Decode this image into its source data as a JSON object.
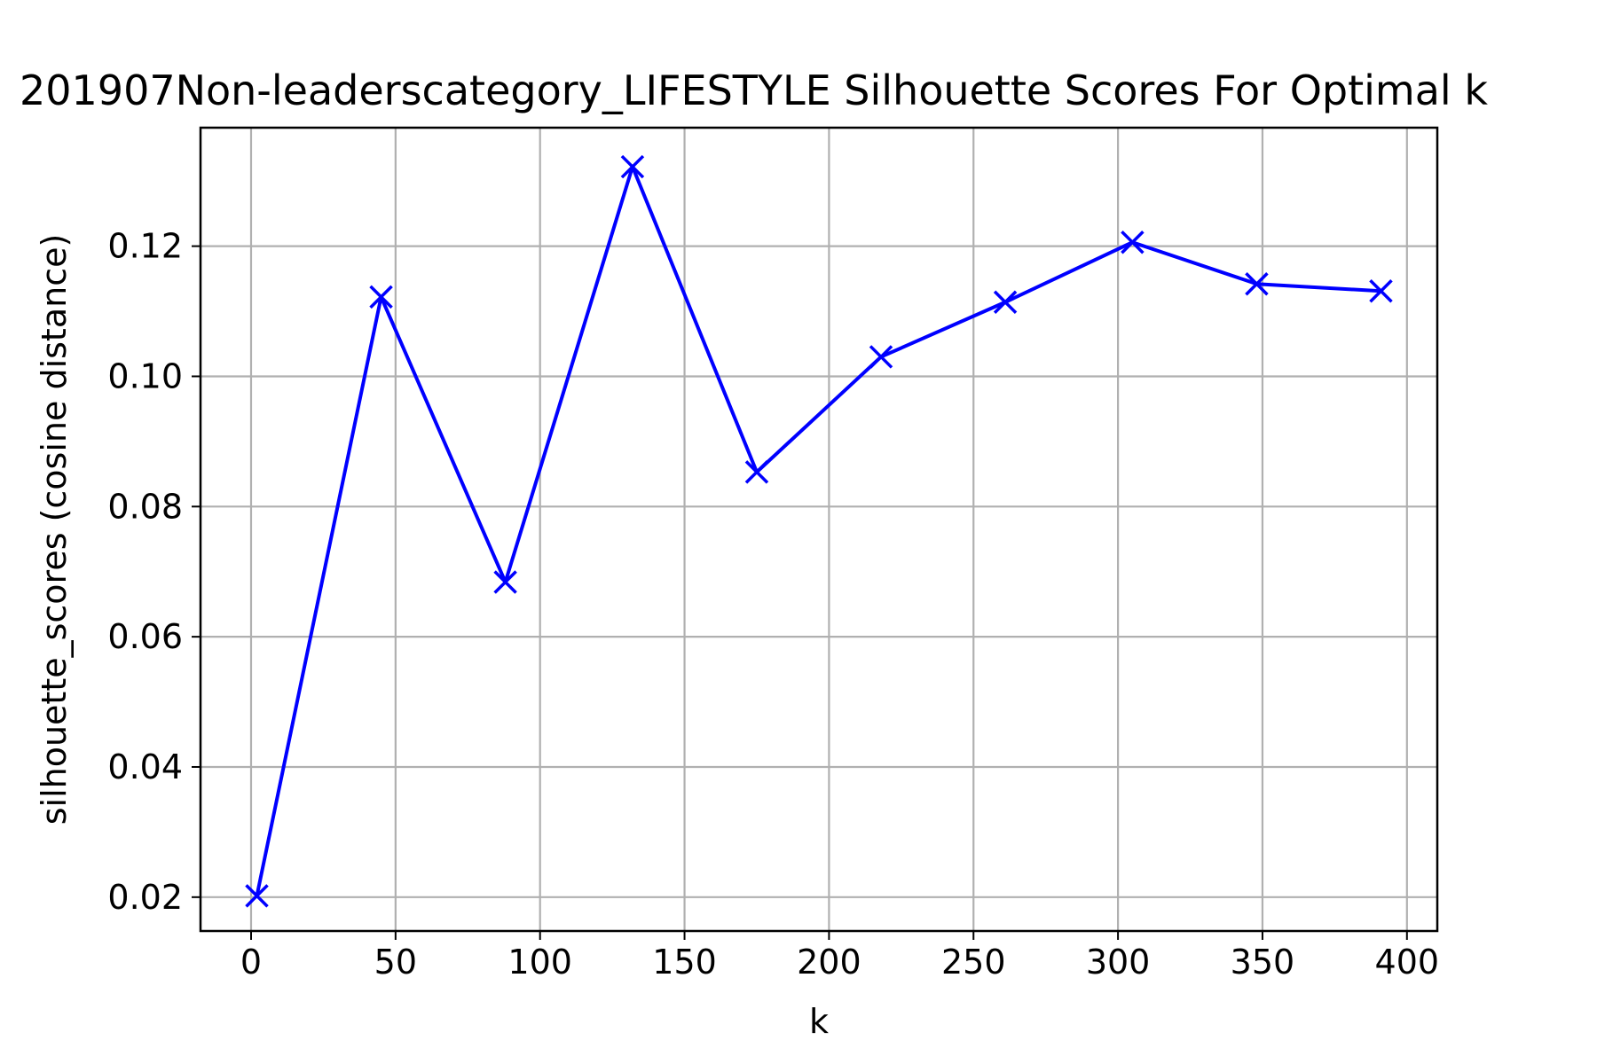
{
  "chart_data": {
    "type": "line",
    "title": "201907Non-leaderscategory_LIFESTYLE Silhouette Scores For Optimal k",
    "xlabel": "k",
    "ylabel": "silhouette_scores (cosine distance)",
    "xlim": [
      -17.5,
      410.5
    ],
    "ylim": [
      0.0148,
      0.1382
    ],
    "xticks": [
      0,
      50,
      100,
      150,
      200,
      250,
      300,
      350,
      400
    ],
    "xtick_labels": [
      "0",
      "50",
      "100",
      "150",
      "200",
      "250",
      "300",
      "350",
      "400"
    ],
    "yticks": [
      0.02,
      0.04,
      0.06,
      0.08,
      0.1,
      0.12
    ],
    "ytick_labels": [
      "0.02",
      "0.04",
      "0.06",
      "0.08",
      "0.10",
      "0.12"
    ],
    "grid": true,
    "series": [
      {
        "marker": "x",
        "color": "#0000ff",
        "x": [
          2,
          45,
          88,
          132,
          175,
          218,
          261,
          305,
          348,
          391
        ],
        "y": [
          0.0202,
          0.1122,
          0.0684,
          0.1322,
          0.0853,
          0.103,
          0.1114,
          0.1206,
          0.1142,
          0.1131
        ]
      }
    ]
  }
}
